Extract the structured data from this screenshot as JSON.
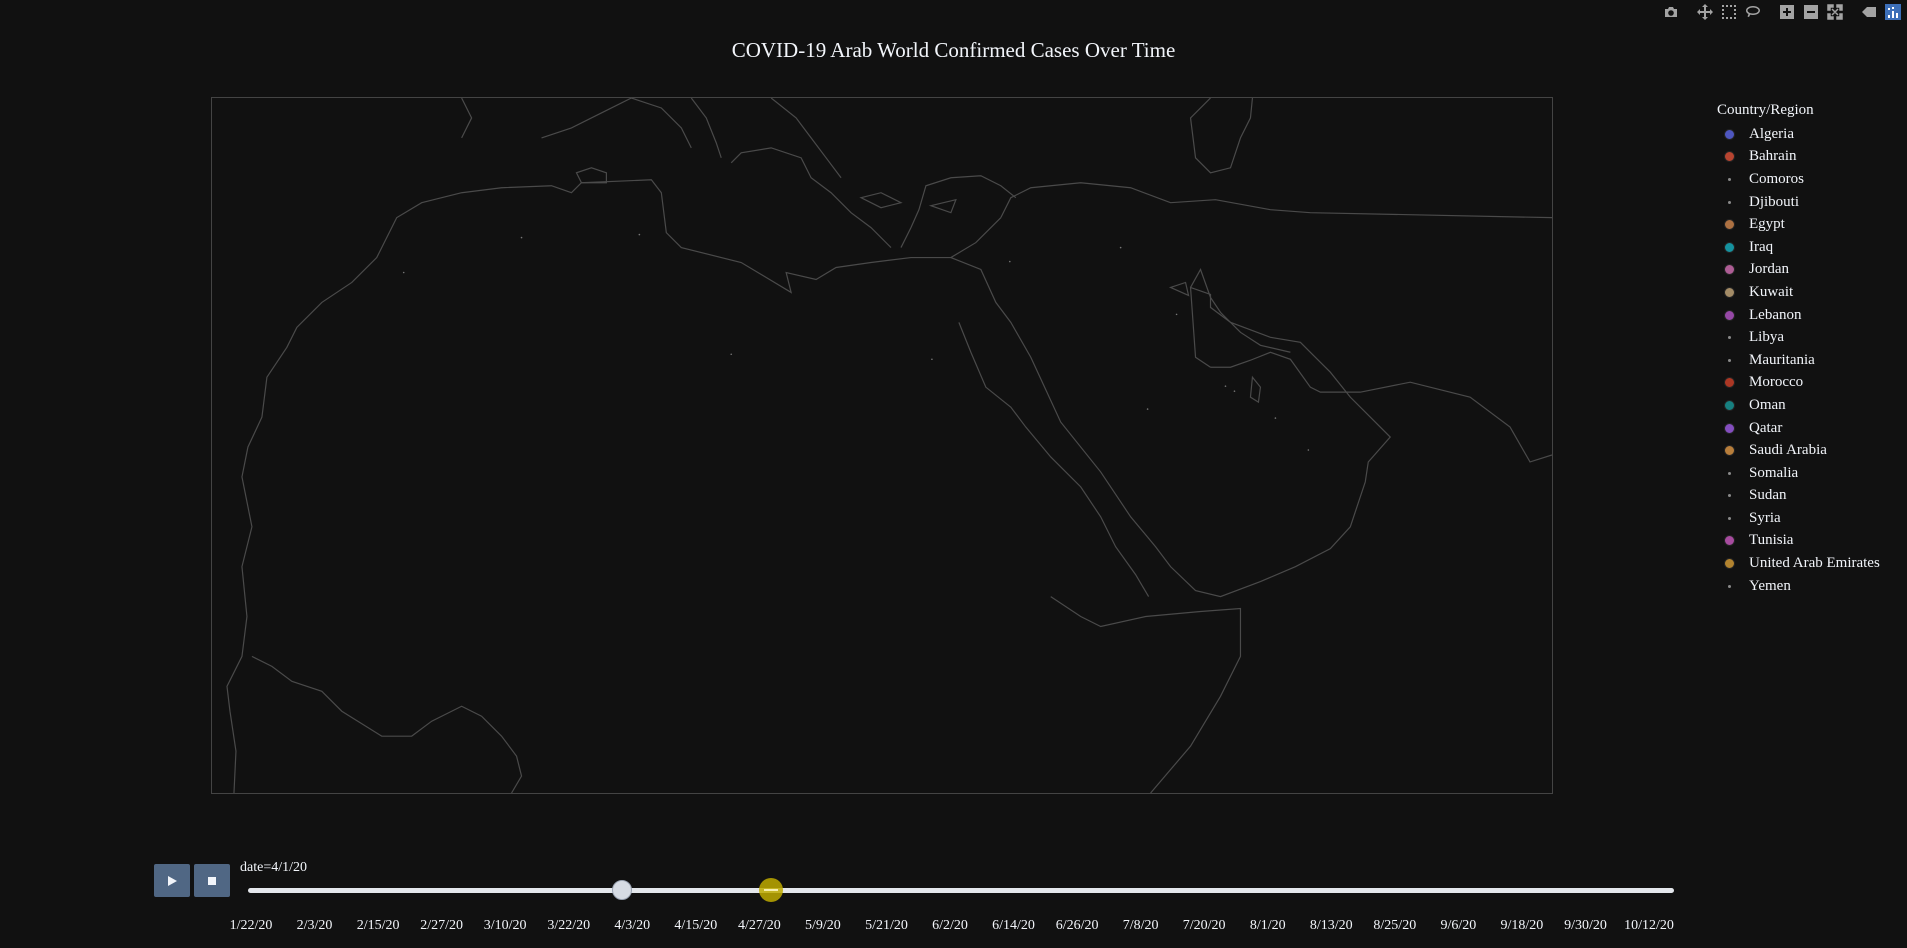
{
  "title": "COVID-19 Arab World Confirmed Cases Over Time",
  "modebar": {
    "icons": [
      "camera-icon",
      "pan-icon",
      "box-select-icon",
      "lasso-icon",
      "zoom-in-icon",
      "zoom-out-icon",
      "autoscale-icon",
      "hover-closest-icon",
      "plotly-logo-icon"
    ]
  },
  "legend": {
    "title": "Country/Region",
    "items": [
      {
        "label": "Algeria",
        "color": "#636efa",
        "marker": "large"
      },
      {
        "label": "Bahrain",
        "color": "#ef553b",
        "marker": "large"
      },
      {
        "label": "Comoros",
        "color": "#8a8a8a",
        "marker": "small"
      },
      {
        "label": "Djibouti",
        "color": "#8a8a8a",
        "marker": "small"
      },
      {
        "label": "Egypt",
        "color": "#e19153",
        "marker": "large"
      },
      {
        "label": "Iraq",
        "color": "#17becf",
        "marker": "large"
      },
      {
        "label": "Jordan",
        "color": "#e377c2",
        "marker": "large"
      },
      {
        "label": "Kuwait",
        "color": "#d4b483",
        "marker": "large"
      },
      {
        "label": "Lebanon",
        "color": "#c35bd8",
        "marker": "large"
      },
      {
        "label": "Libya",
        "color": "#8a8a8a",
        "marker": "small"
      },
      {
        "label": "Mauritania",
        "color": "#8a8a8a",
        "marker": "small"
      },
      {
        "label": "Morocco",
        "color": "#e0442b",
        "marker": "large"
      },
      {
        "label": "Oman",
        "color": "#1aa6a6",
        "marker": "large"
      },
      {
        "label": "Qatar",
        "color": "#ab63fa",
        "marker": "large"
      },
      {
        "label": "Saudi Arabia",
        "color": "#f0a34a",
        "marker": "large"
      },
      {
        "label": "Somalia",
        "color": "#8a8a8a",
        "marker": "small"
      },
      {
        "label": "Sudan",
        "color": "#8a8a8a",
        "marker": "small"
      },
      {
        "label": "Syria",
        "color": "#8a8a8a",
        "marker": "small"
      },
      {
        "label": "Tunisia",
        "color": "#d95fcf",
        "marker": "large"
      },
      {
        "label": "United Arab Emirates",
        "color": "#e8a93a",
        "marker": "large"
      },
      {
        "label": "Yemen",
        "color": "#8a8a8a",
        "marker": "small"
      }
    ]
  },
  "slider": {
    "current_label": "date=4/1/20",
    "current_value": "4/1/20",
    "hover_value": "4/24/20",
    "ticks": [
      "1/22/20",
      "2/3/20",
      "2/15/20",
      "2/27/20",
      "3/10/20",
      "3/22/20",
      "4/3/20",
      "4/15/20",
      "4/27/20",
      "5/9/20",
      "5/21/20",
      "6/2/20",
      "6/14/20",
      "6/26/20",
      "7/8/20",
      "7/20/20",
      "8/1/20",
      "8/13/20",
      "8/25/20",
      "9/6/20",
      "9/18/20",
      "9/30/20",
      "10/12/20"
    ],
    "colors": {
      "button": "#506784",
      "track": "#e4e7ec",
      "pointer": "#bdaa00"
    }
  },
  "buttons": {
    "play": "play-icon",
    "stop": "stop-icon"
  },
  "colors": {
    "background": "#111111",
    "land_border": "#4a4a4a",
    "frame": "#444444"
  }
}
